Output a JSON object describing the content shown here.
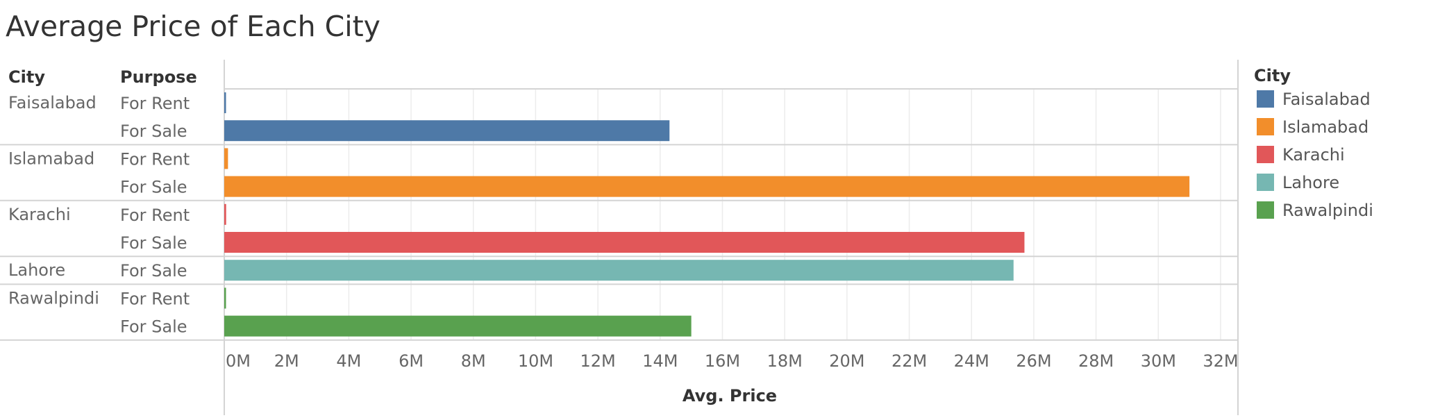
{
  "chart_data": {
    "type": "bar",
    "orientation": "horizontal",
    "title": "Average Price of Each City",
    "row_headers": [
      "City",
      "Purpose"
    ],
    "xlabel": "Avg. Price",
    "xlim": [
      0,
      32500000
    ],
    "x_ticks": [
      0,
      2000000,
      4000000,
      6000000,
      8000000,
      10000000,
      12000000,
      14000000,
      16000000,
      18000000,
      20000000,
      22000000,
      24000000,
      26000000,
      28000000,
      30000000,
      32000000
    ],
    "x_tick_labels": [
      "0M",
      "2M",
      "4M",
      "6M",
      "8M",
      "10M",
      "12M",
      "14M",
      "16M",
      "18M",
      "20M",
      "22M",
      "24M",
      "26M",
      "28M",
      "30M",
      "32M"
    ],
    "grid": true,
    "groups": [
      {
        "city": "Faisalabad",
        "color": "#4e79a7",
        "rows": [
          {
            "purpose": "For Rent",
            "value": 40000
          },
          {
            "purpose": "For Sale",
            "value": 14300000
          }
        ]
      },
      {
        "city": "Islamabad",
        "color": "#f28e2b",
        "rows": [
          {
            "purpose": "For Rent",
            "value": 120000
          },
          {
            "purpose": "For Sale",
            "value": 31000000
          }
        ]
      },
      {
        "city": "Karachi",
        "color": "#e15759",
        "rows": [
          {
            "purpose": "For Rent",
            "value": 60000
          },
          {
            "purpose": "For Sale",
            "value": 25700000
          }
        ]
      },
      {
        "city": "Lahore",
        "color": "#76b7b2",
        "rows": [
          {
            "purpose": "For Sale",
            "value": 25350000
          }
        ]
      },
      {
        "city": "Rawalpindi",
        "color": "#59a14f",
        "rows": [
          {
            "purpose": "For Rent",
            "value": 30000
          },
          {
            "purpose": "For Sale",
            "value": 15000000
          }
        ]
      }
    ],
    "legend": {
      "title": "City",
      "position": "right",
      "items": [
        {
          "label": "Faisalabad",
          "color": "#4e79a7"
        },
        {
          "label": "Islamabad",
          "color": "#f28e2b"
        },
        {
          "label": "Karachi",
          "color": "#e15759"
        },
        {
          "label": "Lahore",
          "color": "#76b7b2"
        },
        {
          "label": "Rawalpindi",
          "color": "#59a14f"
        }
      ]
    }
  }
}
